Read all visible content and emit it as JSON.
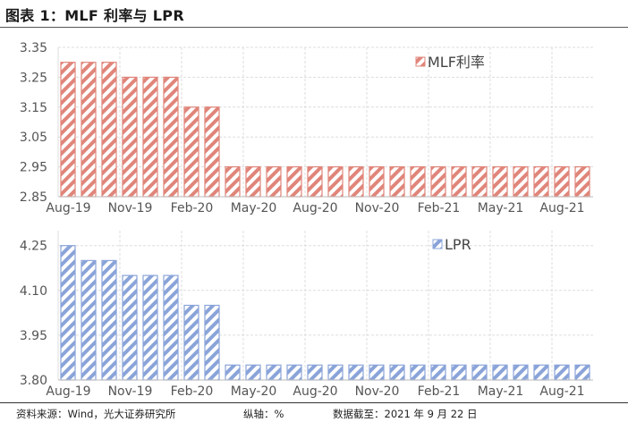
{
  "title": "图表 1：MLF 利率与 LPR",
  "footer": {
    "source": "资料来源：Wind，光大证券研究所",
    "axis_note": "纵轴：%",
    "date_note": "数据截至：2021 年 9 月 22 日"
  },
  "colors": {
    "mlf": "#e0857a",
    "lpr": "#8aa4d9",
    "grid": "#dddddd"
  },
  "chart_data": [
    {
      "type": "bar",
      "title": "",
      "legend": [
        "MLF利率"
      ],
      "legend_position": "top-right",
      "xlabel": "",
      "ylabel": "%",
      "ylim": [
        2.85,
        3.35
      ],
      "yticks": [
        "3.35",
        "3.25",
        "3.15",
        "3.05",
        "2.95",
        "2.85"
      ],
      "xtick_labels": [
        "Aug-19",
        "Nov-19",
        "Feb-20",
        "May-20",
        "Aug-20",
        "Nov-20",
        "Feb-21",
        "May-21",
        "Aug-21"
      ],
      "grid": true,
      "categories": [
        "Aug-19",
        "Sep-19",
        "Oct-19",
        "Nov-19",
        "Dec-19",
        "Jan-20",
        "Feb-20",
        "Mar-20",
        "Apr-20",
        "May-20",
        "Jun-20",
        "Jul-20",
        "Aug-20",
        "Sep-20",
        "Oct-20",
        "Nov-20",
        "Dec-20",
        "Jan-21",
        "Feb-21",
        "Mar-21",
        "Apr-21",
        "May-21",
        "Jun-21",
        "Jul-21",
        "Aug-21",
        "Sep-21"
      ],
      "series": [
        {
          "name": "MLF利率",
          "values": [
            3.3,
            3.3,
            3.3,
            3.25,
            3.25,
            3.25,
            3.15,
            3.15,
            2.95,
            2.95,
            2.95,
            2.95,
            2.95,
            2.95,
            2.95,
            2.95,
            2.95,
            2.95,
            2.95,
            2.95,
            2.95,
            2.95,
            2.95,
            2.95,
            2.95,
            2.95
          ]
        }
      ]
    },
    {
      "type": "bar",
      "title": "",
      "legend": [
        "LPR"
      ],
      "legend_position": "top-right",
      "xlabel": "",
      "ylabel": "%",
      "ylim": [
        3.8,
        4.3
      ],
      "yticks": [
        "4.25",
        "4.10",
        "3.95",
        "3.80"
      ],
      "xtick_labels": [
        "Aug-19",
        "Nov-19",
        "Feb-20",
        "May-20",
        "Aug-20",
        "Nov-20",
        "Feb-21",
        "May-21",
        "Aug-21"
      ],
      "grid": true,
      "categories": [
        "Aug-19",
        "Sep-19",
        "Oct-19",
        "Nov-19",
        "Dec-19",
        "Jan-20",
        "Feb-20",
        "Mar-20",
        "Apr-20",
        "May-20",
        "Jun-20",
        "Jul-20",
        "Aug-20",
        "Sep-20",
        "Oct-20",
        "Nov-20",
        "Dec-20",
        "Jan-21",
        "Feb-21",
        "Mar-21",
        "Apr-21",
        "May-21",
        "Jun-21",
        "Jul-21",
        "Aug-21",
        "Sep-21"
      ],
      "series": [
        {
          "name": "LPR",
          "values": [
            4.25,
            4.2,
            4.2,
            4.15,
            4.15,
            4.15,
            4.05,
            4.05,
            3.85,
            3.85,
            3.85,
            3.85,
            3.85,
            3.85,
            3.85,
            3.85,
            3.85,
            3.85,
            3.85,
            3.85,
            3.85,
            3.85,
            3.85,
            3.85,
            3.85,
            3.85
          ]
        }
      ]
    }
  ]
}
